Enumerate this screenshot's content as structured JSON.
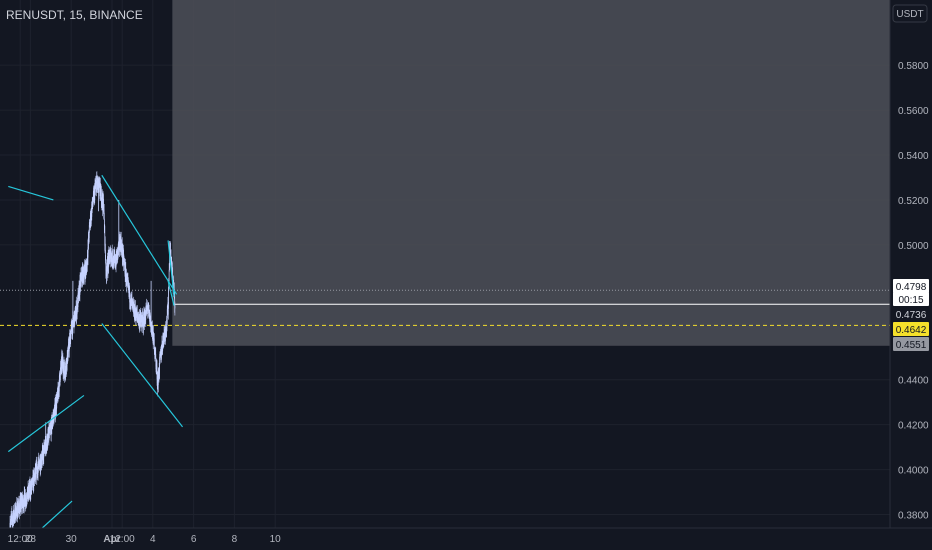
{
  "chart_data": {
    "type": "candlestick",
    "title": "RENUSDT, 15, BINANCE",
    "currency": "USDT",
    "ylim": [
      0.374,
      0.609
    ],
    "y_ticks": [
      "0.5800",
      "0.5600",
      "0.5400",
      "0.5200",
      "0.5000",
      "0.4400",
      "0.4200",
      "0.4000",
      "0.3800"
    ],
    "x_ticks": [
      "12:00",
      "28",
      "30",
      "Apr",
      "12:00",
      "4",
      "6",
      "8",
      "10"
    ],
    "x_tick_hours": [
      12,
      24,
      72,
      120,
      132,
      168,
      216,
      264,
      312
    ],
    "price_tags": [
      {
        "label": "0.4798",
        "value": 0.4798,
        "style": "current"
      },
      {
        "label": "00:15",
        "value": 0.477,
        "style": "countdown"
      },
      {
        "label": "0.4736",
        "value": 0.4736,
        "style": "plain"
      },
      {
        "label": "0.4642",
        "value": 0.4642,
        "style": "yellow"
      },
      {
        "label": "0.4551",
        "value": 0.4551,
        "style": "gray"
      }
    ],
    "horizontal_lines": [
      {
        "value": 0.4798,
        "style": "dotted",
        "color": "#9598a1"
      },
      {
        "value": 0.4736,
        "style": "solid",
        "color": "#ffffff"
      },
      {
        "value": 0.4642,
        "style": "dashed",
        "color": "#f5e02b"
      }
    ],
    "target_zone": {
      "x_start_hours": 191,
      "y_top": 0.609,
      "y_bottom": 0.4551
    },
    "price_path": [
      [
        0,
        0.3762
      ],
      [
        8,
        0.382
      ],
      [
        16,
        0.386
      ],
      [
        24,
        0.391
      ],
      [
        32,
        0.4
      ],
      [
        40,
        0.408
      ],
      [
        48,
        0.418
      ],
      [
        56,
        0.432
      ],
      [
        60,
        0.446
      ],
      [
        62,
        0.448
      ],
      [
        64,
        0.443
      ],
      [
        68,
        0.451
      ],
      [
        72,
        0.462
      ],
      [
        78,
        0.47
      ],
      [
        84,
        0.486
      ],
      [
        90,
        0.49
      ],
      [
        94,
        0.51
      ],
      [
        98,
        0.52
      ],
      [
        102,
        0.528
      ],
      [
        106,
        0.524
      ],
      [
        110,
        0.518
      ],
      [
        113,
        0.488
      ],
      [
        118,
        0.496
      ],
      [
        124,
        0.492
      ],
      [
        130,
        0.502
      ],
      [
        134,
        0.492
      ],
      [
        138,
        0.482
      ],
      [
        144,
        0.472
      ],
      [
        150,
        0.468
      ],
      [
        156,
        0.465
      ],
      [
        162,
        0.472
      ],
      [
        166,
        0.464
      ],
      [
        170,
        0.455
      ],
      [
        174,
        0.438
      ],
      [
        176,
        0.447
      ],
      [
        180,
        0.458
      ],
      [
        184,
        0.464
      ],
      [
        186,
        0.472
      ],
      [
        188,
        0.5
      ],
      [
        190,
        0.49
      ],
      [
        192,
        0.482
      ],
      [
        194,
        0.475
      ]
    ],
    "trend_lines": [
      {
        "from": [
          -2,
          0.526
        ],
        "to": [
          51,
          0.52
        ]
      },
      {
        "from": [
          108,
          0.531
        ],
        "to": [
          196,
          0.478
        ]
      },
      {
        "from": [
          108,
          0.465
        ],
        "to": [
          203,
          0.419
        ]
      },
      {
        "from": [
          -2,
          0.408
        ],
        "to": [
          87,
          0.433
        ]
      },
      {
        "from": [
          35,
          0.373
        ],
        "to": [
          73,
          0.386
        ]
      },
      {
        "from": [
          186,
          0.502
        ],
        "to": [
          193,
          0.477
        ]
      },
      {
        "from": [
          186,
          0.484
        ],
        "to": [
          193,
          0.473
        ]
      }
    ]
  },
  "colors": {
    "background": "#131722",
    "grid": "#1e222d",
    "candle": "#c7d3ff",
    "trend_line": "#26c6da",
    "zone": "#4a4d55",
    "axis_text": "#b2b5be"
  }
}
